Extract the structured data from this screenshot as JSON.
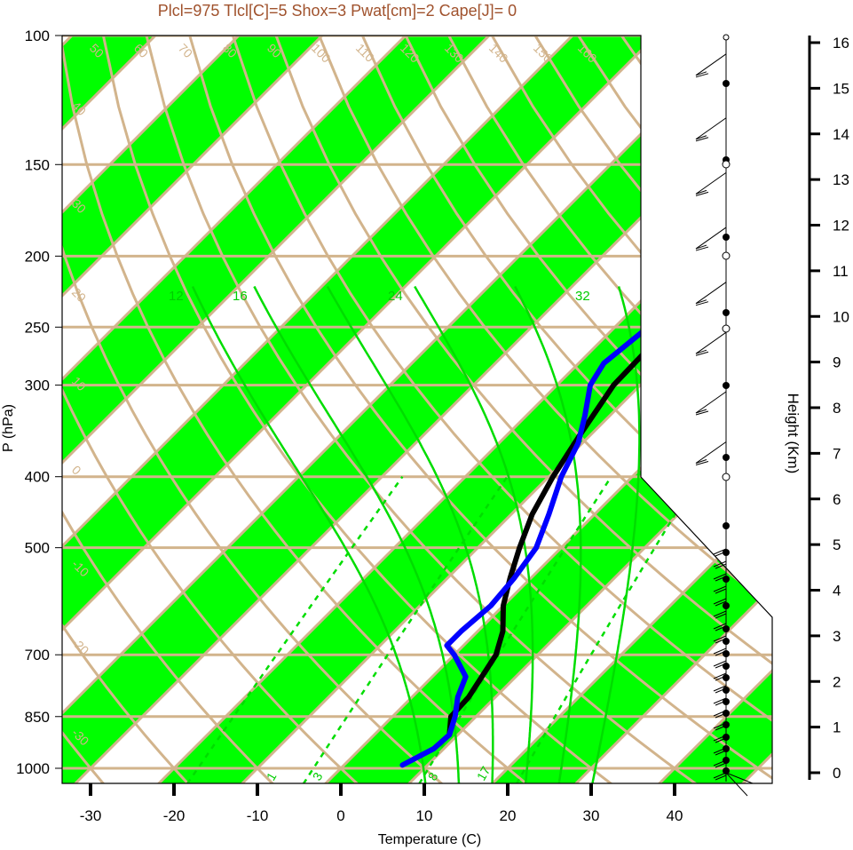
{
  "chart_data": {
    "type": "line",
    "chart_kind": "skew-t log-p diagram",
    "title": "Plcl=975 Tlcl[C]=5 Shox=3 Pwat[cm]=2 Cape[J]= 0",
    "xlabel": "Temperature (C)",
    "ylabel": "P (hPa)",
    "y2label": "Height (Km)",
    "x_ticks": [
      -30,
      -20,
      -10,
      0,
      10,
      20,
      30,
      40
    ],
    "p_ticks": [
      100,
      150,
      200,
      250,
      300,
      400,
      500,
      700,
      850,
      1000
    ],
    "height_ticks": [
      0,
      1,
      2,
      3,
      4,
      5,
      6,
      7,
      8,
      9,
      10,
      11,
      12,
      13,
      14,
      15,
      16
    ],
    "xlim": [
      -34,
      52
    ],
    "plim": [
      100,
      1050
    ],
    "isotherm_labels": [
      {
        "t": 30,
        "text": "30"
      },
      {
        "t": 20,
        "text": "20"
      },
      {
        "t": 10,
        "text": "10"
      },
      {
        "t": 0,
        "text": "0"
      },
      {
        "t": -10,
        "text": "-10"
      },
      {
        "t": -20,
        "text": "-20"
      },
      {
        "t": -30,
        "text": "-30"
      },
      {
        "t": -40,
        "text": "-40"
      },
      {
        "t": -50,
        "text": "-50"
      }
    ],
    "theta_labels": [
      "40",
      "30",
      "20",
      "10",
      "0",
      "-10",
      "-20",
      "-30",
      "50",
      "60",
      "70",
      "80",
      "90",
      "100",
      "110",
      "120",
      "130",
      "140",
      "150",
      "160"
    ],
    "mixing_ratio_labels": [
      "12",
      "16",
      "24",
      "32"
    ],
    "dashed_labels": [
      "1",
      "3",
      "8",
      "17"
    ],
    "series": [
      {
        "name": "Temperature",
        "color": "#000000",
        "points": [
          [
            9,
            900
          ],
          [
            7,
            850
          ],
          [
            6.8,
            800
          ],
          [
            5,
            700
          ],
          [
            3,
            650
          ],
          [
            0,
            600
          ],
          [
            -2.5,
            550
          ],
          [
            -5,
            500
          ],
          [
            -7.5,
            450
          ],
          [
            -9.5,
            400
          ],
          [
            -11.3,
            350
          ],
          [
            -13.2,
            300
          ],
          [
            -13.4,
            270
          ],
          [
            -13,
            250
          ],
          [
            -11,
            230
          ],
          [
            -7,
            210
          ],
          [
            -3,
            195
          ],
          [
            2,
            175
          ],
          [
            7,
            160
          ],
          [
            10,
            145
          ],
          [
            12.5,
            130
          ],
          [
            14,
            120
          ],
          [
            16.5,
            112
          ]
        ]
      },
      {
        "name": "Dewpoint",
        "color": "#0000ff",
        "points": [
          [
            7,
            990
          ],
          [
            8.8,
            940
          ],
          [
            9,
            900
          ],
          [
            7.5,
            850
          ],
          [
            5.5,
            800
          ],
          [
            4,
            750
          ],
          [
            0,
            700
          ],
          [
            -2,
            680
          ],
          [
            -2,
            650
          ],
          [
            -1.5,
            600
          ],
          [
            -2,
            550
          ],
          [
            -3,
            500
          ],
          [
            -5.5,
            450
          ],
          [
            -8.5,
            400
          ],
          [
            -10.5,
            360
          ],
          [
            -13,
            330
          ],
          [
            -16,
            300
          ],
          [
            -17,
            280
          ],
          [
            -16,
            250
          ],
          [
            -17,
            225
          ],
          [
            -20,
            210
          ],
          [
            -23,
            200
          ],
          [
            -25,
            190
          ],
          [
            -21,
            170
          ],
          [
            -16,
            150
          ],
          [
            -11,
            130
          ],
          [
            -7.5,
            112
          ]
        ]
      }
    ],
    "wind_barbs": [
      {
        "km": 15.4,
        "barb": "full"
      },
      {
        "km": 14,
        "barb": "full"
      },
      {
        "km": 12.8,
        "barb": "full"
      },
      {
        "km": 11.6,
        "barb": "full"
      },
      {
        "km": 10.4,
        "barb": "full"
      },
      {
        "km": 9.3,
        "barb": "full"
      },
      {
        "km": 8,
        "barb": "full"
      },
      {
        "km": 6.9,
        "barb": "full"
      }
    ]
  }
}
